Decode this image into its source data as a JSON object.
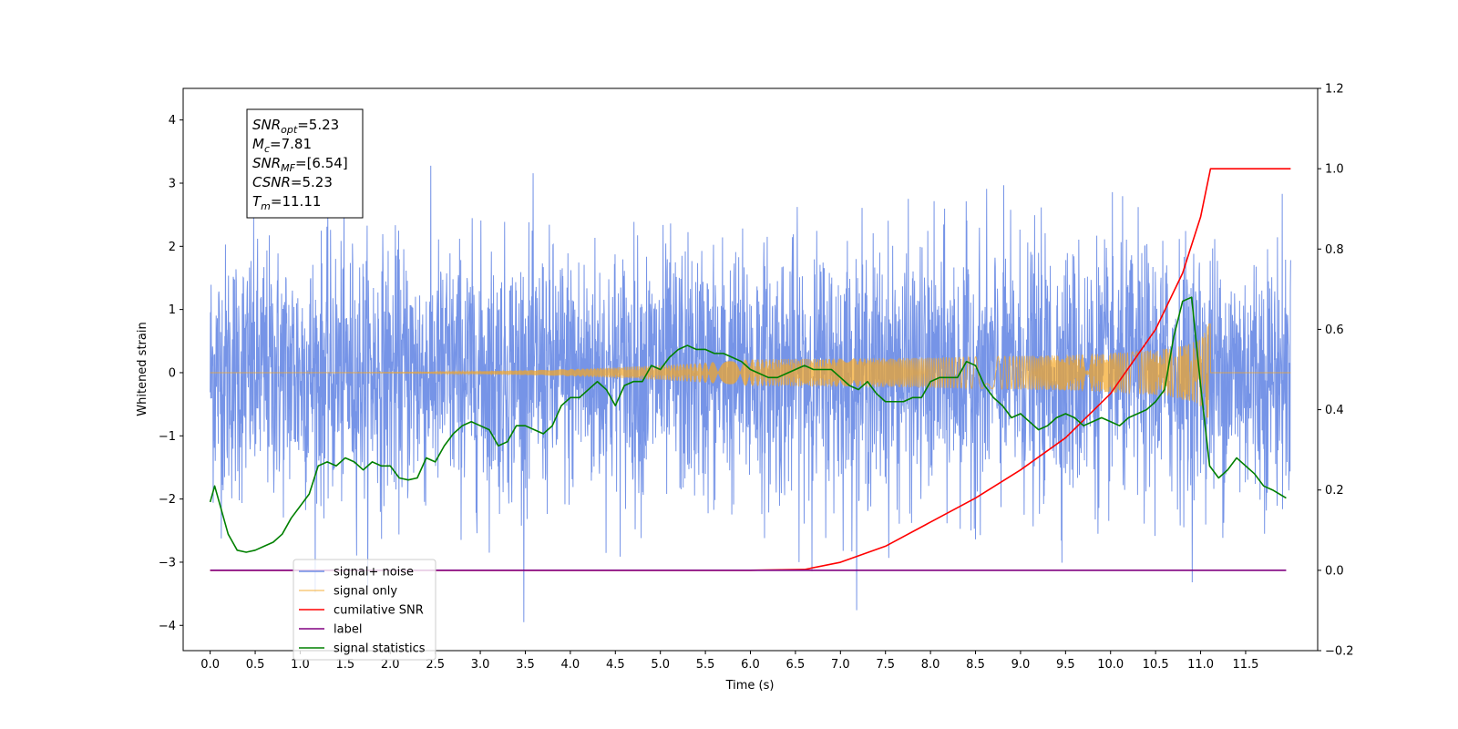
{
  "chart_data": {
    "type": "line",
    "xlabel": "Time (s)",
    "ylabel": "Whitened strain",
    "xlim": [
      -0.3,
      12.3
    ],
    "ylim_left": [
      -4.4,
      4.5
    ],
    "ylim_right": [
      -0.2,
      1.2
    ],
    "x_ticks": [
      "0.0",
      "0.5",
      "1.0",
      "1.5",
      "2.0",
      "2.5",
      "3.0",
      "3.5",
      "4.0",
      "4.5",
      "5.0",
      "5.5",
      "6.0",
      "6.5",
      "7.0",
      "7.5",
      "8.0",
      "8.5",
      "9.0",
      "9.5",
      "10.0",
      "10.5",
      "11.0",
      "11.5"
    ],
    "y_ticks_left": [
      "-4",
      "-3",
      "-2",
      "-1",
      "0",
      "1",
      "2",
      "3",
      "4"
    ],
    "y_ticks_right": [
      "-0.2",
      "0.0",
      "0.2",
      "0.4",
      "0.6",
      "0.8",
      "1.0",
      "1.2"
    ],
    "colors": {
      "signal_noise": "#6f8ee6",
      "signal_only": "#f5a623",
      "cumulative_snr": "#ff0000",
      "label": "#800080",
      "signal_statistics": "#008000"
    },
    "series": [
      {
        "name": "signal+ noise",
        "axis": "left",
        "x_range": [
          0.0,
          12.0
        ],
        "y_range_approx": [
          -3.95,
          4.12
        ],
        "note_values": "dense whitened noise sampled across the full range"
      },
      {
        "name": "signal only",
        "axis": "left",
        "chirp_end_time": 11.11,
        "amplitude_peak": 0.85
      },
      {
        "name": "cumilative SNR",
        "axis": "right",
        "x": [
          0.0,
          6.0,
          6.6,
          7.0,
          7.5,
          8.0,
          8.5,
          9.0,
          9.5,
          10.0,
          10.5,
          10.8,
          11.0,
          11.11,
          11.5,
          12.0
        ],
        "y": [
          0.0,
          0.0,
          0.002,
          0.02,
          0.06,
          0.12,
          0.18,
          0.25,
          0.33,
          0.44,
          0.6,
          0.74,
          0.88,
          1.0,
          1.0,
          1.0
        ]
      },
      {
        "name": "label",
        "axis": "right",
        "x": [
          0.0,
          11.95
        ],
        "y": [
          0.0,
          0.0
        ]
      },
      {
        "name": "signal statistics",
        "axis": "right",
        "x": [
          0.0,
          0.05,
          0.1,
          0.2,
          0.3,
          0.4,
          0.5,
          0.6,
          0.7,
          0.8,
          0.9,
          1.0,
          1.1,
          1.2,
          1.3,
          1.4,
          1.5,
          1.6,
          1.7,
          1.8,
          1.9,
          2.0,
          2.1,
          2.2,
          2.3,
          2.4,
          2.5,
          2.6,
          2.7,
          2.8,
          2.9,
          3.0,
          3.1,
          3.2,
          3.3,
          3.4,
          3.5,
          3.6,
          3.7,
          3.8,
          3.9,
          4.0,
          4.1,
          4.2,
          4.3,
          4.4,
          4.5,
          4.6,
          4.7,
          4.8,
          4.9,
          5.0,
          5.1,
          5.2,
          5.3,
          5.4,
          5.5,
          5.6,
          5.7,
          5.8,
          5.9,
          6.0,
          6.1,
          6.2,
          6.3,
          6.4,
          6.5,
          6.6,
          6.7,
          6.8,
          6.9,
          7.0,
          7.1,
          7.2,
          7.3,
          7.4,
          7.5,
          7.6,
          7.7,
          7.8,
          7.9,
          8.0,
          8.1,
          8.2,
          8.3,
          8.4,
          8.5,
          8.6,
          8.7,
          8.8,
          8.9,
          9.0,
          9.1,
          9.2,
          9.3,
          9.4,
          9.5,
          9.6,
          9.7,
          9.8,
          9.9,
          10.0,
          10.1,
          10.2,
          10.3,
          10.4,
          10.5,
          10.6,
          10.7,
          10.8,
          10.9,
          11.0,
          11.1,
          11.2,
          11.3,
          11.4,
          11.5,
          11.6,
          11.7,
          11.8,
          11.95
        ],
        "y": [
          0.17,
          0.21,
          0.17,
          0.09,
          0.05,
          0.045,
          0.05,
          0.06,
          0.07,
          0.09,
          0.13,
          0.16,
          0.19,
          0.26,
          0.27,
          0.26,
          0.28,
          0.27,
          0.25,
          0.27,
          0.26,
          0.26,
          0.23,
          0.225,
          0.23,
          0.28,
          0.27,
          0.31,
          0.34,
          0.36,
          0.37,
          0.36,
          0.35,
          0.31,
          0.32,
          0.36,
          0.36,
          0.35,
          0.34,
          0.36,
          0.41,
          0.43,
          0.43,
          0.45,
          0.47,
          0.45,
          0.41,
          0.46,
          0.47,
          0.47,
          0.51,
          0.5,
          0.53,
          0.55,
          0.56,
          0.55,
          0.55,
          0.54,
          0.54,
          0.53,
          0.52,
          0.5,
          0.49,
          0.48,
          0.48,
          0.49,
          0.5,
          0.51,
          0.5,
          0.5,
          0.5,
          0.48,
          0.46,
          0.45,
          0.47,
          0.44,
          0.42,
          0.42,
          0.42,
          0.43,
          0.43,
          0.47,
          0.48,
          0.48,
          0.48,
          0.52,
          0.51,
          0.46,
          0.43,
          0.41,
          0.38,
          0.39,
          0.37,
          0.35,
          0.36,
          0.38,
          0.39,
          0.38,
          0.36,
          0.37,
          0.38,
          0.37,
          0.36,
          0.38,
          0.39,
          0.4,
          0.42,
          0.45,
          0.58,
          0.67,
          0.68,
          0.46,
          0.26,
          0.23,
          0.25,
          0.28,
          0.26,
          0.24,
          0.21,
          0.2,
          0.18
        ]
      }
    ],
    "legend": {
      "placement": "lower-left",
      "entries": [
        "signal+ noise",
        "signal only",
        "cumilative SNR",
        "label",
        "signal statistics"
      ]
    },
    "info_box": {
      "placement": "upper-left",
      "lines": [
        {
          "base": "SNR",
          "sub": "opt",
          "value": "=5.23"
        },
        {
          "base": "M",
          "sub": "c",
          "value": "=7.81"
        },
        {
          "base": "SNR",
          "sub": "MF",
          "value": "=[6.54]"
        },
        {
          "base": "CSNR",
          "sub": "",
          "value": "=5.23"
        },
        {
          "base": "T",
          "sub": "m",
          "value": "=11.11"
        }
      ]
    },
    "grid": false
  }
}
